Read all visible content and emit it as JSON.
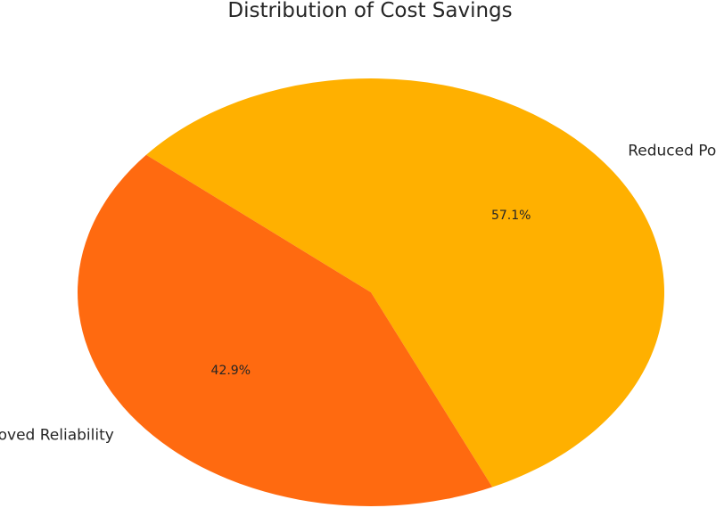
{
  "chart_data": {
    "type": "pie",
    "title": "Distribution of Cost Savings",
    "start_angle_deg": 140,
    "slices": [
      {
        "label": "Reduced Power Losses",
        "value": 57.1,
        "pct_label": "57.1%",
        "color": "#FFB000"
      },
      {
        "label": "Improved Reliability",
        "value": 42.9,
        "pct_label": "42.9%",
        "color": "#FF6A10"
      }
    ]
  }
}
